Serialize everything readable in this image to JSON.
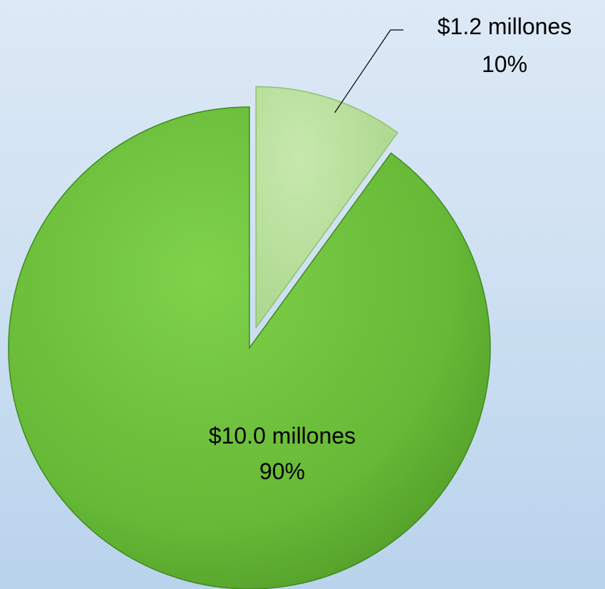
{
  "chart_data": {
    "type": "pie",
    "title": "",
    "slices": [
      {
        "value": 10.0,
        "percent": 90,
        "value_label": "$10.0  millones",
        "percent_label": "90%",
        "color": "#6dbf3b",
        "exploded": false
      },
      {
        "value": 1.2,
        "percent": 10,
        "value_label": "$1.2 millones",
        "percent_label": "10%",
        "color": "#b3dc96",
        "exploded": true
      }
    ],
    "legend": "none",
    "background_color": "#cfe1f2"
  }
}
